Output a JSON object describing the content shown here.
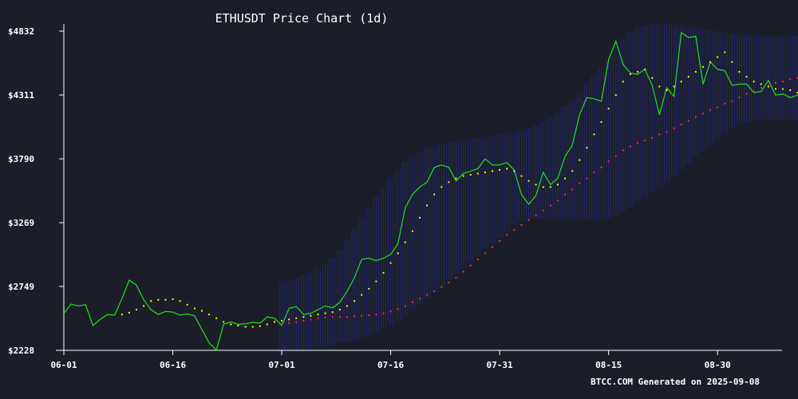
{
  "chart_data": {
    "type": "line",
    "title": "ETHUSDT Price Chart (1d)",
    "footer": "BTCC.COM Generated on 2025-09-08",
    "xlabel": "",
    "ylabel": "",
    "x_start": "2025-06-01",
    "x_end": "2025-09-07",
    "ylim": [
      2228,
      4832
    ],
    "yticks": [
      2228,
      2749,
      3269,
      3790,
      4311,
      4832
    ],
    "ytick_labels": [
      "$2228",
      "$2749",
      "$3269",
      "$3790",
      "$4311",
      "$4832"
    ],
    "xticks": [
      "2025-06-01",
      "2025-06-16",
      "2025-07-01",
      "2025-07-16",
      "2025-07-31",
      "2025-08-15",
      "2025-08-30"
    ],
    "xtick_labels": [
      "06-01",
      "06-16",
      "07-01",
      "07-16",
      "07-31",
      "08-15",
      "08-30"
    ],
    "grid": false,
    "legend": "none",
    "series": [
      {
        "style": "line",
        "color": "#22e01c",
        "values": [
          2530,
          2605,
          2590,
          2600,
          2430,
          2480,
          2520,
          2515,
          2650,
          2800,
          2760,
          2640,
          2560,
          2520,
          2545,
          2540,
          2515,
          2525,
          2510,
          2400,
          2290,
          2230,
          2440,
          2460,
          2440,
          2445,
          2455,
          2450,
          2500,
          2490,
          2430,
          2570,
          2585,
          2520,
          2530,
          2560,
          2590,
          2575,
          2620,
          2710,
          2820,
          2970,
          2980,
          2960,
          2980,
          3010,
          3100,
          3390,
          3500,
          3560,
          3600,
          3720,
          3740,
          3720,
          3610,
          3670,
          3690,
          3710,
          3790,
          3740,
          3740,
          3760,
          3700,
          3500,
          3420,
          3490,
          3680,
          3580,
          3630,
          3810,
          3900,
          4150,
          4290,
          4280,
          4260,
          4600,
          4750,
          4560,
          4490,
          4480,
          4520,
          4390,
          4150,
          4370,
          4300,
          4820,
          4780,
          4790,
          4400,
          4580,
          4520,
          4510,
          4390,
          4400,
          4400,
          4330,
          4340,
          4430,
          4310,
          4320,
          4290,
          4310,
          4300
        ]
      },
      {
        "style": "dots",
        "color": "#ffff00",
        "values": [
          null,
          null,
          null,
          null,
          null,
          null,
          null,
          null,
          2520,
          2535,
          2560,
          2590,
          2630,
          2640,
          2640,
          2645,
          2630,
          2600,
          2570,
          2550,
          2520,
          2490,
          2460,
          2440,
          2430,
          2420,
          2420,
          2425,
          2440,
          2460,
          2470,
          2480,
          2490,
          2500,
          2510,
          2520,
          2530,
          2540,
          2560,
          2590,
          2630,
          2680,
          2730,
          2790,
          2860,
          2940,
          3020,
          3110,
          3200,
          3310,
          3410,
          3500,
          3560,
          3600,
          3630,
          3650,
          3660,
          3670,
          3680,
          3690,
          3700,
          3710,
          3690,
          3650,
          3610,
          3580,
          3560,
          3560,
          3580,
          3630,
          3690,
          3780,
          3880,
          3990,
          4090,
          4200,
          4310,
          4420,
          4480,
          4500,
          4520,
          4450,
          4380,
          4350,
          4380,
          4420,
          4460,
          4500,
          4540,
          4580,
          4620,
          4660,
          4580,
          4500,
          4460,
          4420,
          4400,
          4380,
          4360,
          4360,
          4350,
          4330,
          4320
        ]
      },
      {
        "style": "dots",
        "color": "#ff2a2a",
        "values": [
          null,
          null,
          null,
          null,
          null,
          null,
          null,
          null,
          null,
          null,
          null,
          null,
          null,
          null,
          null,
          null,
          null,
          null,
          null,
          null,
          null,
          null,
          null,
          null,
          null,
          null,
          null,
          null,
          null,
          null,
          2440,
          2450,
          2460,
          2470,
          2480,
          2490,
          2495,
          2500,
          2500,
          2500,
          2505,
          2510,
          2515,
          2520,
          2530,
          2545,
          2565,
          2590,
          2620,
          2650,
          2680,
          2710,
          2745,
          2780,
          2820,
          2870,
          2920,
          2970,
          3020,
          3070,
          3120,
          3170,
          3210,
          3250,
          3290,
          3330,
          3370,
          3410,
          3450,
          3500,
          3540,
          3590,
          3630,
          3680,
          3720,
          3770,
          3810,
          3860,
          3890,
          3920,
          3940,
          3960,
          3990,
          4010,
          4040,
          4070,
          4100,
          4130,
          4160,
          4190,
          4210,
          4240,
          4260,
          4290,
          4320,
          4340,
          4370,
          4390,
          4410,
          4420,
          4440,
          4450,
          4460
        ]
      },
      {
        "style": "band",
        "color": "#2a2f9c",
        "upper": [
          null,
          null,
          null,
          null,
          null,
          null,
          null,
          null,
          null,
          null,
          null,
          null,
          null,
          null,
          null,
          null,
          null,
          null,
          null,
          null,
          null,
          null,
          null,
          null,
          null,
          null,
          null,
          null,
          null,
          null,
          2780,
          2800,
          2820,
          2840,
          2860,
          2890,
          2930,
          2980,
          3050,
          3130,
          3220,
          3310,
          3400,
          3480,
          3560,
          3630,
          3700,
          3760,
          3810,
          3850,
          3880,
          3900,
          3910,
          3920,
          3930,
          3940,
          3950,
          3960,
          3970,
          3980,
          3990,
          4000,
          4010,
          4020,
          4040,
          4060,
          4090,
          4130,
          4170,
          4220,
          4270,
          4330,
          4400,
          4470,
          4540,
          4620,
          4700,
          4770,
          4820,
          4860,
          4880,
          4890,
          4890,
          4890,
          4880,
          4880,
          4870,
          4860,
          4850,
          4840,
          4830,
          4820,
          4810,
          4800,
          4800,
          4790,
          4790,
          4790,
          4790,
          4790,
          4790,
          4790,
          4790
        ],
        "lower": [
          null,
          null,
          null,
          null,
          null,
          null,
          null,
          null,
          null,
          null,
          null,
          null,
          null,
          null,
          null,
          null,
          null,
          null,
          null,
          null,
          null,
          null,
          null,
          null,
          null,
          null,
          null,
          null,
          null,
          null,
          2200,
          2210,
          2220,
          2230,
          2240,
          2250,
          2260,
          2270,
          2290,
          2300,
          2310,
          2330,
          2350,
          2380,
          2410,
          2440,
          2470,
          2510,
          2550,
          2600,
          2650,
          2700,
          2750,
          2800,
          2850,
          2900,
          2950,
          3000,
          3050,
          3100,
          3150,
          3200,
          3250,
          3280,
          3300,
          3300,
          3300,
          3300,
          3300,
          3300,
          3300,
          3300,
          3300,
          3300,
          3300,
          3310,
          3330,
          3360,
          3400,
          3440,
          3480,
          3520,
          3560,
          3600,
          3650,
          3700,
          3750,
          3800,
          3850,
          3900,
          3950,
          4000,
          4050,
          4080,
          4090,
          4100,
          4110,
          4110,
          4110,
          4110,
          4110,
          4110,
          4110
        ]
      }
    ]
  }
}
